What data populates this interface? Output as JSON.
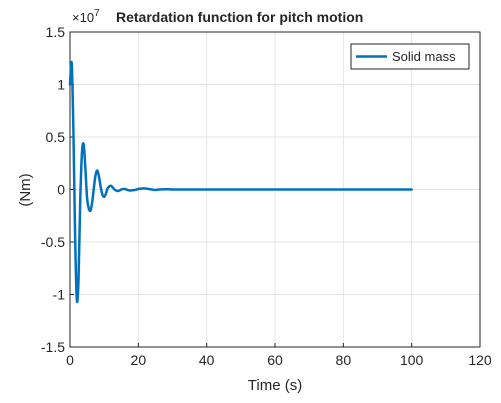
{
  "chart_data": {
    "type": "line",
    "title": "Retardation function for pitch motion",
    "xlabel": "Time (s)",
    "ylabel": "(Nm)",
    "exponent_label": "×10",
    "exponent_power": "7",
    "xlim": [
      0,
      120
    ],
    "ylim": [
      -1.5,
      1.5
    ],
    "xticks": [
      0,
      20,
      40,
      60,
      80,
      100,
      120
    ],
    "yticks": [
      -1.5,
      -1,
      -0.5,
      0,
      0.5,
      1,
      1.5
    ],
    "xtick_labels": [
      "0",
      "20",
      "40",
      "60",
      "80",
      "100",
      "120"
    ],
    "ytick_labels": [
      "-1.5",
      "-1",
      "-0.5",
      "0",
      "0.5",
      "1",
      "1.5"
    ],
    "grid": true,
    "legend_position": "top-right",
    "series": [
      {
        "name": "Solid mass",
        "color": "#0072BD",
        "x": [
          0,
          0.5,
          1.0,
          1.5,
          2.0,
          2.5,
          3.0,
          3.5,
          4.0,
          4.5,
          5.0,
          5.5,
          6.0,
          6.5,
          7.0,
          7.5,
          8.0,
          8.5,
          9.0,
          9.5,
          10.0,
          10.5,
          11.0,
          11.5,
          12.0,
          12.5,
          13.0,
          13.5,
          14.0,
          14.5,
          15.0,
          15.5,
          16.0,
          16.5,
          17.0,
          17.5,
          18.0,
          19.0,
          20.0,
          21.0,
          22.0,
          23.0,
          24.0,
          25.0,
          26.0,
          28.0,
          30.0,
          35.0,
          40.0,
          50.0,
          60.0,
          70.0,
          80.0,
          90.0,
          100.0
        ],
        "y": [
          1.0,
          1.2,
          0.55,
          -0.45,
          -1.05,
          -0.85,
          -0.1,
          0.35,
          0.43,
          0.2,
          -0.08,
          -0.18,
          -0.2,
          -0.12,
          0.02,
          0.14,
          0.18,
          0.12,
          0.02,
          -0.05,
          -0.07,
          -0.04,
          0.01,
          0.03,
          0.035,
          0.02,
          0.0,
          -0.01,
          -0.015,
          -0.01,
          0.0,
          0.005,
          0.005,
          0.0,
          -0.005,
          -0.01,
          -0.008,
          -0.005,
          0.005,
          0.01,
          0.01,
          0.005,
          0.0,
          -0.005,
          0.0,
          0.003,
          0.0,
          0.0,
          0.0,
          0.0,
          0.0,
          0.0,
          0.0,
          0.0,
          0.0
        ]
      }
    ]
  }
}
